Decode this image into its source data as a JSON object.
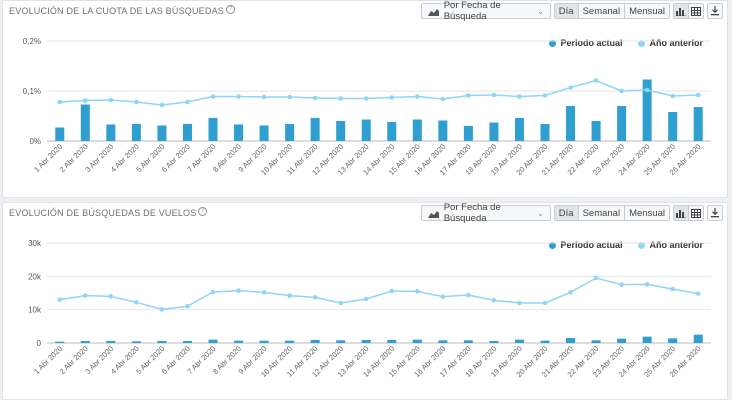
{
  "colors": {
    "current": "#2e9fd0",
    "previous": "#8fd6f5"
  },
  "toolbar": {
    "date_mode": "Por Fecha de Búsqueda",
    "granularity": [
      "Día",
      "Semanal",
      "Mensual"
    ],
    "active_granularity": "Día",
    "icons": [
      "bar-chart-view-icon",
      "table-view-icon",
      "download-icon"
    ]
  },
  "charts": [
    {
      "title": "EVOLUCIÓN DE LA CUOTA DE LAS BÚSQUEDAS",
      "legend": {
        "current": "Periodo actual",
        "previous": "Año anterior"
      }
    },
    {
      "title": "EVOLUCIÓN DE BÚSQUEDAS DE VUELOS",
      "legend": {
        "current": "Periodo actual",
        "previous": "Año anterior"
      }
    }
  ],
  "chart_data": [
    {
      "type": "bar",
      "title": "EVOLUCIÓN DE LA CUOTA DE LAS BÚSQUEDAS",
      "categories": [
        "1 Abr 2020",
        "2 Abr 2020",
        "3 Abr 2020",
        "4 Abr 2020",
        "5 Abr 2020",
        "6 Abr 2020",
        "7 Abr 2020",
        "8 Abr 2020",
        "9 Abr 2020",
        "10 Abr 2020",
        "11 Abr 2020",
        "12 Abr 2020",
        "13 Abr 2020",
        "14 Abr 2020",
        "15 Abr 2020",
        "16 Abr 2020",
        "17 Abr 2020",
        "18 Abr 2020",
        "19 Abr 2020",
        "20 Abr 2020",
        "21 Abr 2020",
        "22 Abr 2020",
        "23 Abr 2020",
        "24 Abr 2020",
        "25 Abr 2020",
        "26 Abr 2020"
      ],
      "yticks": [
        "0%",
        "0,1%",
        "0,2%"
      ],
      "ylim": [
        0,
        0.2
      ],
      "series": [
        {
          "name": "Periodo actual",
          "type": "bar",
          "values": [
            0.027,
            0.073,
            0.033,
            0.034,
            0.031,
            0.034,
            0.046,
            0.033,
            0.031,
            0.034,
            0.046,
            0.04,
            0.043,
            0.038,
            0.043,
            0.041,
            0.03,
            0.037,
            0.046,
            0.034,
            0.07,
            0.04,
            0.07,
            0.123,
            0.058,
            0.068
          ]
        },
        {
          "name": "Año anterior",
          "type": "line",
          "values": [
            0.078,
            0.081,
            0.082,
            0.078,
            0.072,
            0.078,
            0.089,
            0.089,
            0.088,
            0.088,
            0.086,
            0.085,
            0.085,
            0.087,
            0.089,
            0.084,
            0.091,
            0.092,
            0.089,
            0.091,
            0.107,
            0.121,
            0.1,
            0.102,
            0.09,
            0.092
          ]
        }
      ],
      "legend": "top-right",
      "grid": true
    },
    {
      "type": "bar",
      "title": "EVOLUCIÓN DE BÚSQUEDAS DE VUELOS",
      "categories": [
        "1 Abr 2020",
        "2 Abr 2020",
        "3 Abr 2020",
        "4 Abr 2020",
        "5 Abr 2020",
        "6 Abr 2020",
        "7 Abr 2020",
        "8 Abr 2020",
        "9 Abr 2020",
        "10 Abr 2020",
        "11 Abr 2020",
        "12 Abr 2020",
        "13 Abr 2020",
        "14 Abr 2020",
        "15 Abr 2020",
        "16 Abr 2020",
        "17 Abr 2020",
        "18 Abr 2020",
        "19 Abr 2020",
        "20 Abr 2020",
        "21 Abr 2020",
        "22 Abr 2020",
        "23 Abr 2020",
        "24 Abr 2020",
        "25 Abr 2020",
        "26 Abr 2020"
      ],
      "yticks": [
        "0",
        "10k",
        "20k",
        "30k"
      ],
      "ylim": [
        0,
        30000
      ],
      "series": [
        {
          "name": "Periodo actual",
          "type": "bar",
          "values": [
            400,
            600,
            600,
            500,
            600,
            600,
            1000,
            700,
            700,
            700,
            900,
            800,
            900,
            900,
            1000,
            800,
            800,
            600,
            1000,
            700,
            1500,
            800,
            1300,
            1900,
            1400,
            2500
          ]
        },
        {
          "name": "Año anterior",
          "type": "line",
          "values": [
            13000,
            14200,
            14000,
            12200,
            10100,
            11000,
            15300,
            15700,
            15200,
            14200,
            13700,
            12000,
            13200,
            15600,
            15500,
            13900,
            14400,
            12800,
            12000,
            12000,
            15200,
            19500,
            17500,
            17600,
            16200,
            14800
          ]
        }
      ],
      "legend": "top-right",
      "grid": true
    }
  ]
}
